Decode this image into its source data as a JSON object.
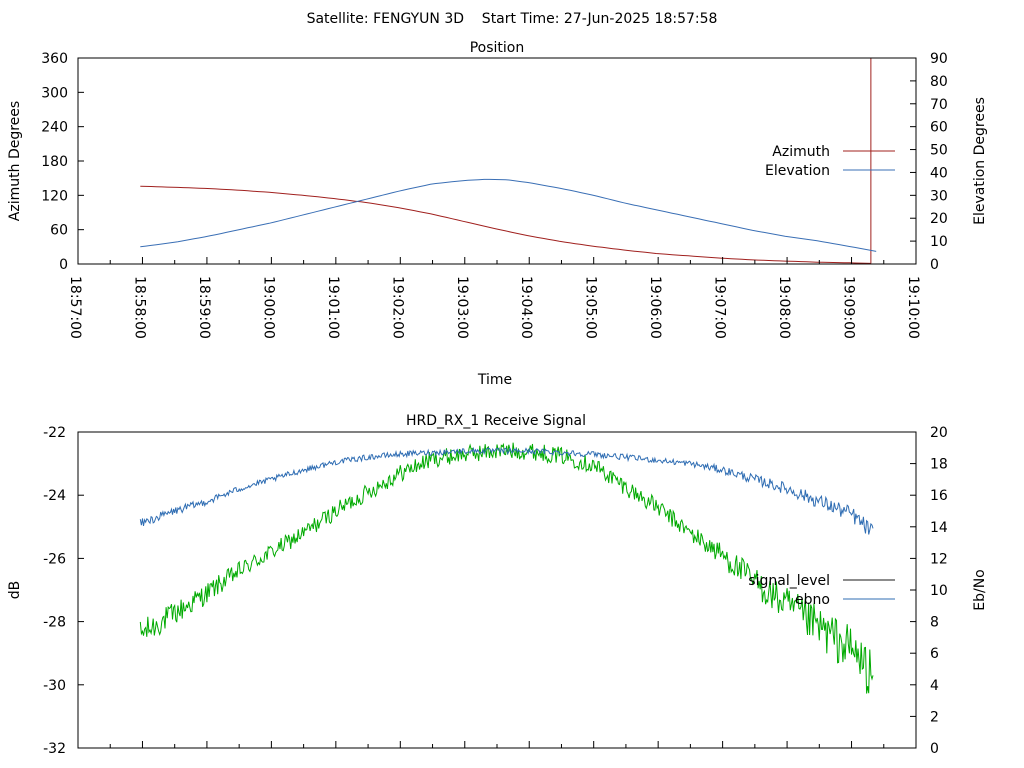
{
  "header": {
    "title": "Satellite: FENGYUN 3D    Start Time: 27-Jun-2025 18:57:58"
  },
  "colors": {
    "azimuth": "#a0201e",
    "elevation": "#3a6fb5",
    "signal_level": "#1a1a1a",
    "ebno_line": "#2f6db3",
    "signal_trace": "#00aa00",
    "axis": "#000000"
  },
  "chart_data": [
    {
      "type": "line",
      "title": "Position",
      "xlabel": "Time",
      "ylabel": "Azimuth Degrees",
      "y2label": "Elevation Degrees",
      "xticks": [
        "18:57:00",
        "18:58:00",
        "18:59:00",
        "19:00:00",
        "19:01:00",
        "19:02:00",
        "19:03:00",
        "19:04:00",
        "19:05:00",
        "19:06:00",
        "19:07:00",
        "19:08:00",
        "19:09:00",
        "19:10:00"
      ],
      "xlim": [
        "18:57:00",
        "19:10:00"
      ],
      "ylim": [
        0,
        360
      ],
      "y2lim": [
        0,
        90
      ],
      "yticks": [
        0,
        60,
        120,
        180,
        240,
        300,
        360
      ],
      "y2ticks": [
        0,
        10,
        20,
        30,
        40,
        50,
        60,
        70,
        80,
        90
      ],
      "legend_position": "right",
      "series": [
        {
          "name": "Azimuth",
          "axis": "y1",
          "time": [
            "18:57:58",
            "18:58:30",
            "18:59:00",
            "18:59:30",
            "19:00:00",
            "19:00:30",
            "19:01:00",
            "19:01:30",
            "19:02:00",
            "19:02:30",
            "19:03:00",
            "19:03:30",
            "19:04:00",
            "19:04:30",
            "19:05:00",
            "19:05:30",
            "19:06:00",
            "19:06:30",
            "19:07:00",
            "19:07:30",
            "19:08:00",
            "19:08:30",
            "19:09:00",
            "19:09:18"
          ],
          "values": [
            136,
            134,
            132,
            129,
            125,
            120,
            114,
            107,
            98,
            87,
            74,
            61,
            49,
            39,
            31,
            24,
            18,
            14,
            10,
            7,
            5,
            3,
            2,
            1
          ]
        },
        {
          "name": "Elevation",
          "axis": "y2",
          "time": [
            "18:57:58",
            "18:58:30",
            "18:59:00",
            "18:59:30",
            "19:00:00",
            "19:00:30",
            "19:01:00",
            "19:01:30",
            "19:02:00",
            "19:02:30",
            "19:03:00",
            "19:03:20",
            "19:03:40",
            "19:04:00",
            "19:04:30",
            "19:05:00",
            "19:05:30",
            "19:06:00",
            "19:06:30",
            "19:07:00",
            "19:07:30",
            "19:08:00",
            "19:08:30",
            "19:09:00",
            "19:09:23"
          ],
          "values": [
            7.5,
            9.5,
            12,
            15,
            18,
            21.5,
            25,
            28.5,
            32,
            35,
            36.5,
            37,
            36.8,
            35.5,
            33,
            30,
            26.5,
            23.5,
            20.5,
            17.5,
            14.5,
            12,
            10,
            7.5,
            5.5
          ]
        }
      ]
    },
    {
      "type": "line",
      "title": "HRD_RX_1 Receive Signal",
      "ylabel": "dB",
      "y2label": "Eb/No",
      "ylim": [
        -32,
        -22
      ],
      "y2lim": [
        0,
        20
      ],
      "yticks": [
        -32,
        -30,
        -28,
        -26,
        -24,
        -22
      ],
      "y2ticks": [
        0,
        2,
        4,
        6,
        8,
        10,
        12,
        14,
        16,
        18,
        20
      ],
      "legend_position": "right",
      "series": [
        {
          "name": "signal_level",
          "axis": "y1",
          "time": [
            "18:57:58",
            "18:58:30",
            "18:59:00",
            "18:59:30",
            "19:00:00",
            "19:00:30",
            "19:01:00",
            "19:01:30",
            "19:02:00",
            "19:02:30",
            "19:03:00",
            "19:03:30",
            "19:04:00",
            "19:04:30",
            "19:05:00",
            "19:05:30",
            "19:06:00",
            "19:06:30",
            "19:07:00",
            "19:07:30",
            "19:08:00",
            "19:08:30",
            "19:09:00",
            "19:09:20"
          ],
          "values": [
            -24.9,
            -24.5,
            -24.2,
            -23.8,
            -23.5,
            -23.2,
            -22.95,
            -22.8,
            -22.7,
            -22.65,
            -22.6,
            -22.6,
            -22.6,
            -22.65,
            -22.7,
            -22.8,
            -22.9,
            -23.0,
            -23.2,
            -23.5,
            -23.8,
            -24.2,
            -24.6,
            -25.2
          ]
        },
        {
          "name": "ebno",
          "axis": "y2",
          "time": [
            "18:57:58",
            "18:58:30",
            "18:59:00",
            "18:59:30",
            "19:00:00",
            "19:00:30",
            "19:01:00",
            "19:01:30",
            "19:02:00",
            "19:02:30",
            "19:03:00",
            "19:03:30",
            "19:04:00",
            "19:04:30",
            "19:05:00",
            "19:05:30",
            "19:06:00",
            "19:06:30",
            "19:07:00",
            "19:07:30",
            "19:08:00",
            "19:08:30",
            "19:09:00",
            "19:09:20"
          ],
          "values": [
            7.2,
            8.5,
            9.8,
            11.2,
            12.4,
            13.6,
            15.0,
            16.2,
            17.4,
            18.3,
            18.6,
            18.8,
            18.8,
            18.5,
            17.9,
            16.5,
            15.2,
            13.6,
            12.2,
            10.5,
            9.0,
            7.6,
            6.2,
            4.6
          ]
        }
      ]
    }
  ]
}
